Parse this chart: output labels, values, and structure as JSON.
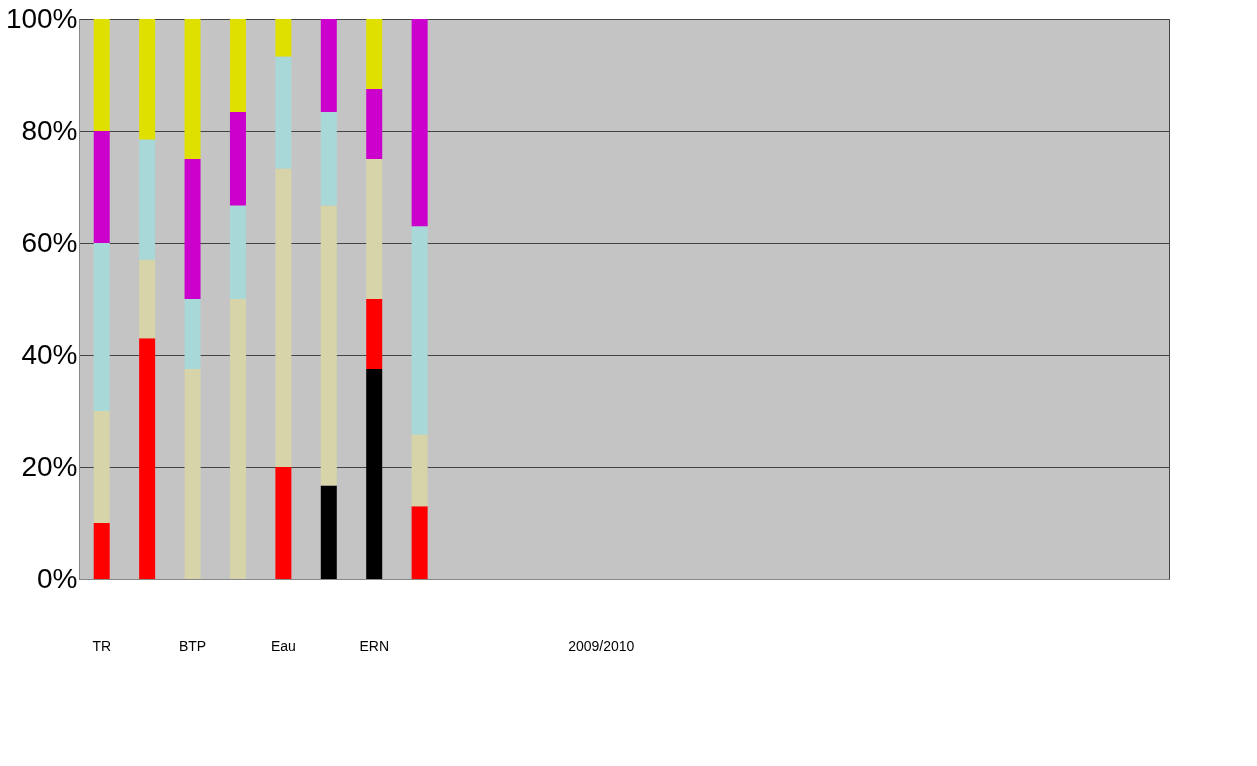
{
  "chart_data": {
    "type": "bar",
    "stacked": true,
    "grid": "y",
    "categories": [
      "TR",
      null,
      "BTP",
      null,
      "Eau",
      null,
      "ERN",
      null,
      null,
      null,
      null,
      "2009/2010",
      null,
      null,
      null,
      null,
      null,
      null,
      null,
      null,
      null,
      null,
      null,
      null
    ],
    "series": [
      {
        "color": "#000000",
        "values": [
          0,
          0,
          0,
          0,
          0,
          16.7,
          37.5,
          0,
          null,
          null,
          null,
          null,
          null,
          null,
          null,
          null,
          null,
          null,
          null,
          null,
          null,
          null,
          null,
          null
        ]
      },
      {
        "color": "#ff0000",
        "values": [
          10,
          43,
          0,
          0,
          20,
          0,
          12.5,
          13,
          null,
          null,
          null,
          null,
          null,
          null,
          null,
          null,
          null,
          null,
          null,
          null,
          null,
          null,
          null,
          null
        ]
      },
      {
        "color": "#d6d4a8",
        "values": [
          20,
          14,
          37.5,
          50,
          53.3,
          50,
          25,
          12.8,
          null,
          null,
          null,
          null,
          null,
          null,
          null,
          null,
          null,
          null,
          null,
          null,
          null,
          null,
          null,
          null
        ]
      },
      {
        "color": "#a8d8d8",
        "values": [
          30,
          21.5,
          12.5,
          16.7,
          20,
          16.7,
          0,
          37.2,
          null,
          null,
          null,
          null,
          null,
          null,
          null,
          null,
          null,
          null,
          null,
          null,
          null,
          null,
          null,
          null
        ]
      },
      {
        "color": "#cc00cc",
        "values": [
          20,
          0,
          25,
          16.7,
          0,
          16.6,
          12.5,
          37,
          null,
          null,
          null,
          null,
          null,
          null,
          null,
          null,
          null,
          null,
          null,
          null,
          null,
          null,
          null,
          null
        ]
      },
      {
        "color": "#e0e000",
        "values": [
          20,
          21.5,
          25,
          16.6,
          6.7,
          0,
          12.5,
          0,
          null,
          null,
          null,
          null,
          null,
          null,
          null,
          null,
          null,
          null,
          null,
          null,
          null,
          null,
          null,
          null
        ]
      }
    ],
    "ylim": [
      0,
      100
    ],
    "yticks": [
      {
        "value": 0,
        "label": "0%"
      },
      {
        "value": 20,
        "label": "20%"
      },
      {
        "value": 40,
        "label": "40%"
      },
      {
        "value": 60,
        "label": "60%"
      },
      {
        "value": 80,
        "label": "80%"
      },
      {
        "value": 100,
        "label": "100%"
      }
    ]
  }
}
